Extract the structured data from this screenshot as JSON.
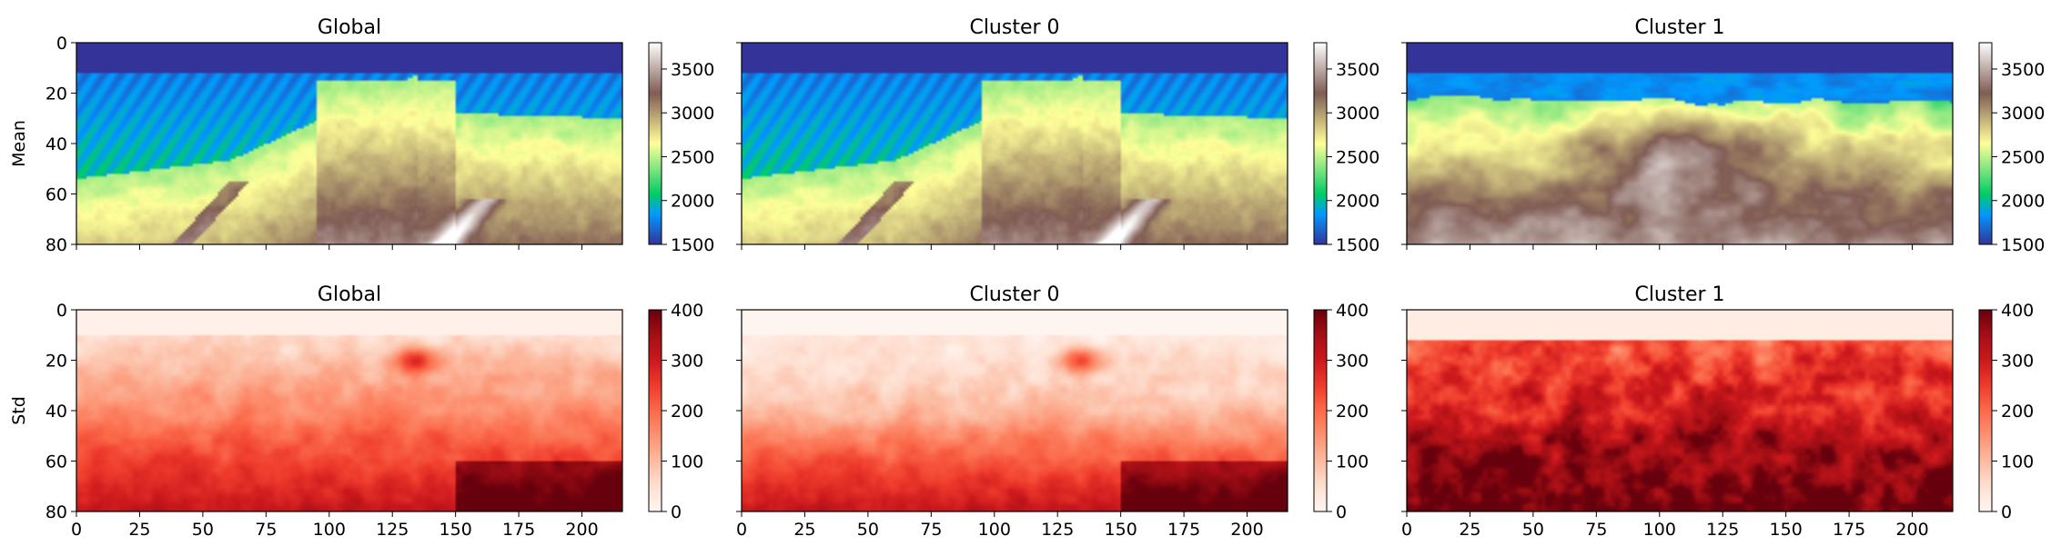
{
  "chart_data": {
    "type": "heatmap",
    "row_labels": [
      "Mean",
      "Std"
    ],
    "x_ticks": [
      0,
      25,
      50,
      75,
      100,
      125,
      150,
      175,
      200
    ],
    "y_ticks": [
      0,
      20,
      40,
      60,
      80
    ],
    "xlim": [
      0,
      216
    ],
    "ylim": [
      80,
      0
    ],
    "panels": [
      {
        "row": 0,
        "col": 0,
        "title": "Global",
        "field": "mean_global",
        "cmap": "terrain",
        "vmin": 1500,
        "vmax": 3800,
        "cbar_ticks": [
          1500,
          2000,
          2500,
          3000,
          3500
        ]
      },
      {
        "row": 0,
        "col": 1,
        "title": "Cluster 0",
        "field": "mean_cluster0",
        "cmap": "terrain",
        "vmin": 1500,
        "vmax": 3800,
        "cbar_ticks": [
          1500,
          2000,
          2500,
          3000,
          3500
        ]
      },
      {
        "row": 0,
        "col": 2,
        "title": "Cluster 1",
        "field": "mean_cluster1",
        "cmap": "terrain",
        "vmin": 1500,
        "vmax": 3800,
        "cbar_ticks": [
          1500,
          2000,
          2500,
          3000,
          3500
        ]
      },
      {
        "row": 1,
        "col": 0,
        "title": "Global",
        "field": "std_global",
        "cmap": "Reds",
        "vmin": 0,
        "vmax": 400,
        "cbar_ticks": [
          0,
          100,
          200,
          300,
          400
        ]
      },
      {
        "row": 1,
        "col": 1,
        "title": "Cluster 0",
        "field": "std_cluster0",
        "cmap": "Reds",
        "vmin": 0,
        "vmax": 400,
        "cbar_ticks": [
          0,
          100,
          200,
          300,
          400
        ]
      },
      {
        "row": 1,
        "col": 2,
        "title": "Cluster 1",
        "field": "std_cluster1",
        "cmap": "Reds",
        "vmin": 0,
        "vmax": 400,
        "cbar_ticks": [
          0,
          100,
          200,
          300,
          400
        ]
      }
    ],
    "approx_features": {
      "water_layer_depth": 12,
      "water_value": 1500,
      "mean_global_value_range": [
        1500,
        3800
      ],
      "std_global_value_range": [
        0,
        400
      ],
      "std_cluster1_typical": 300
    }
  }
}
